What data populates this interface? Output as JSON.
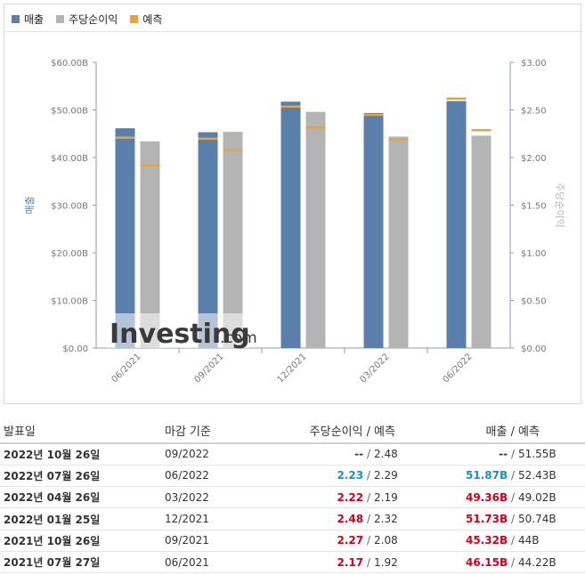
{
  "colors": {
    "revenue": "#5b7fab",
    "eps": "#b4b4b4",
    "forecast": "#e8a43a",
    "beat": "#d0021b",
    "miss": "#1a8fd0",
    "neutral": "#333333"
  },
  "legend": [
    {
      "label": "매출",
      "color_key": "revenue"
    },
    {
      "label": "주당순이익",
      "color_key": "eps"
    },
    {
      "label": "예측",
      "color_key": "forecast"
    }
  ],
  "watermark": {
    "brand": "Investing",
    "suffix": ".com"
  },
  "chart_data": {
    "type": "bar",
    "categories": [
      "06/2021",
      "09/2021",
      "12/2021",
      "03/2022",
      "06/2022"
    ],
    "series": [
      {
        "name": "매출",
        "axis": "left",
        "values": [
          46.15,
          45.32,
          51.73,
          49.36,
          51.87
        ],
        "forecast": [
          44.22,
          44.0,
          50.74,
          49.02,
          52.43
        ]
      },
      {
        "name": "주당순이익",
        "axis": "right",
        "values": [
          2.17,
          2.27,
          2.48,
          2.22,
          2.23
        ],
        "forecast": [
          1.92,
          2.08,
          2.32,
          2.19,
          2.29
        ]
      }
    ],
    "ylabel": "매출",
    "y2label": "주당순이익",
    "ylim": [
      0,
      60
    ],
    "y2lim": [
      0,
      3
    ],
    "yticks": [
      "$0.00",
      "$10.00B",
      "$20.00B",
      "$30.00B",
      "$40.00B",
      "$50.00B",
      "$60.00B"
    ],
    "y2ticks": [
      "$0.00",
      "$0.50",
      "$1.00",
      "$1.50",
      "$2.00",
      "$2.50",
      "$3.00"
    ],
    "grid": false,
    "legend_position": "top-left"
  },
  "table": {
    "headers": {
      "date": "발표일",
      "period": "마감 기준",
      "eps": "주당순이익",
      "eps_forecast": "예측",
      "revenue": "매출",
      "revenue_forecast": "예측",
      "slash": "/"
    },
    "rows": [
      {
        "date": "2022년 10월 26일",
        "period": "09/2022",
        "eps": "--",
        "eps_forecast": "2.48",
        "eps_status": "neutral",
        "revenue": "--",
        "revenue_forecast": "51.55B",
        "revenue_status": "neutral"
      },
      {
        "date": "2022년 07월 26일",
        "period": "06/2022",
        "eps": "2.23",
        "eps_forecast": "2.29",
        "eps_status": "miss",
        "revenue": "51.87B",
        "revenue_forecast": "52.43B",
        "revenue_status": "miss"
      },
      {
        "date": "2022년 04월 26일",
        "period": "03/2022",
        "eps": "2.22",
        "eps_forecast": "2.19",
        "eps_status": "beat",
        "revenue": "49.36B",
        "revenue_forecast": "49.02B",
        "revenue_status": "beat"
      },
      {
        "date": "2022년 01월 25일",
        "period": "12/2021",
        "eps": "2.48",
        "eps_forecast": "2.32",
        "eps_status": "beat",
        "revenue": "51.73B",
        "revenue_forecast": "50.74B",
        "revenue_status": "beat"
      },
      {
        "date": "2021년 10월 26일",
        "period": "09/2021",
        "eps": "2.27",
        "eps_forecast": "2.08",
        "eps_status": "beat",
        "revenue": "45.32B",
        "revenue_forecast": "44B",
        "revenue_status": "beat"
      },
      {
        "date": "2021년 07월 27일",
        "period": "06/2021",
        "eps": "2.17",
        "eps_forecast": "1.92",
        "eps_status": "beat",
        "revenue": "46.15B",
        "revenue_forecast": "44.22B",
        "revenue_status": "beat"
      }
    ]
  }
}
